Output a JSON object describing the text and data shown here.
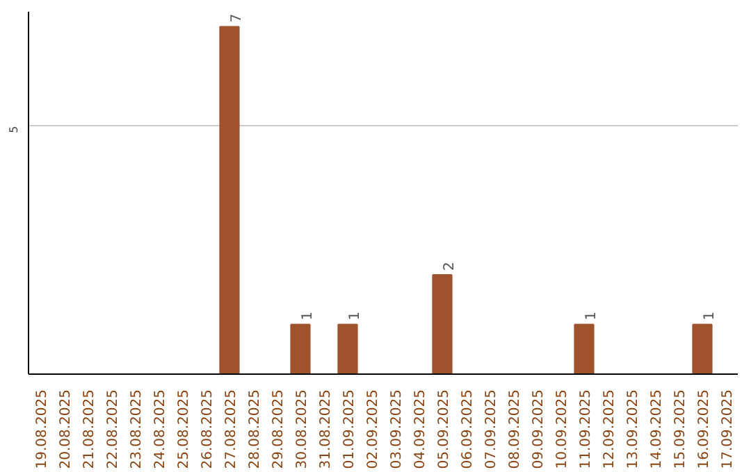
{
  "chart_data": {
    "type": "bar",
    "categories": [
      "19.08.2025",
      "20.08.2025",
      "21.08.2025",
      "22.08.2025",
      "23.08.2025",
      "24.08.2025",
      "25.08.2025",
      "26.08.2025",
      "27.08.2025",
      "28.08.2025",
      "29.08.2025",
      "30.08.2025",
      "31.08.2025",
      "01.09.2025",
      "02.09.2025",
      "03.09.2025",
      "04.09.2025",
      "05.09.2025",
      "06.09.2025",
      "07.09.2025",
      "08.09.2025",
      "09.09.2025",
      "10.09.2025",
      "11.09.2025",
      "12.09.2025",
      "13.09.2025",
      "14.09.2025",
      "15.09.2025",
      "16.09.2025",
      "17.09.2025"
    ],
    "values": [
      0,
      0,
      0,
      0,
      0,
      0,
      0,
      0,
      7,
      0,
      0,
      1,
      0,
      1,
      0,
      0,
      0,
      2,
      0,
      0,
      0,
      0,
      0,
      1,
      0,
      0,
      0,
      0,
      1,
      0
    ],
    "value_labels": [
      null,
      null,
      null,
      null,
      null,
      null,
      null,
      null,
      "7",
      null,
      null,
      "1",
      null,
      "1",
      null,
      null,
      null,
      "2",
      null,
      null,
      null,
      null,
      null,
      "1",
      null,
      null,
      null,
      null,
      "1",
      null
    ],
    "color": "#a0522d",
    "ylim": [
      0,
      7.3
    ],
    "yticks": [
      5
    ],
    "grid": "y"
  }
}
